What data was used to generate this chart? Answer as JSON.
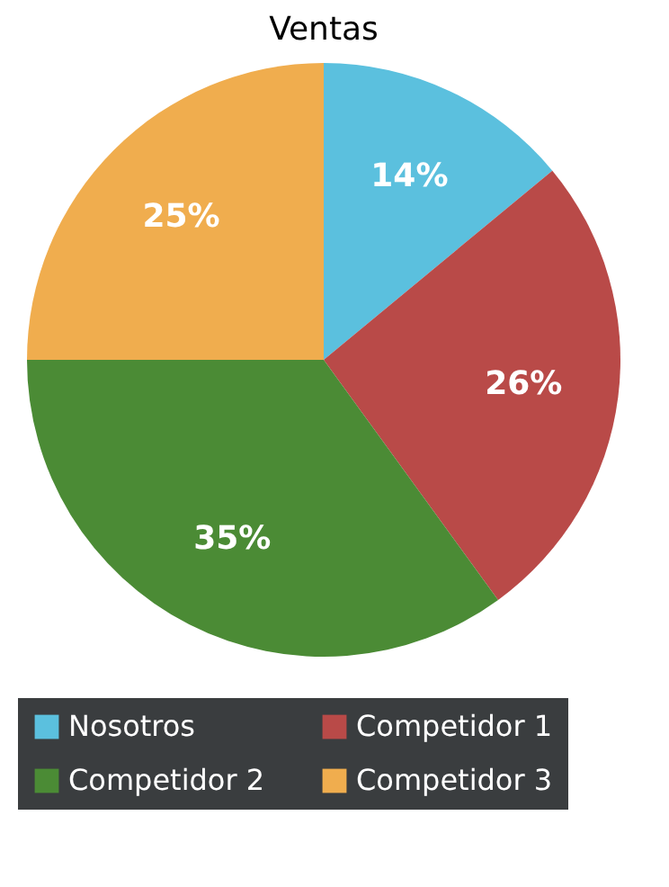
{
  "chart_data": {
    "type": "pie",
    "title": "Ventas",
    "categories": [
      "Nosotros",
      "Competidor 1",
      "Competidor 2",
      "Competidor 3"
    ],
    "values": [
      14,
      26,
      35,
      25
    ],
    "colors": [
      "#5bc0de",
      "#b94a48",
      "#4b8b35",
      "#f0ad4e"
    ],
    "value_labels": [
      "14%",
      "26%",
      "35%",
      "25%"
    ],
    "legend": "bottom"
  }
}
